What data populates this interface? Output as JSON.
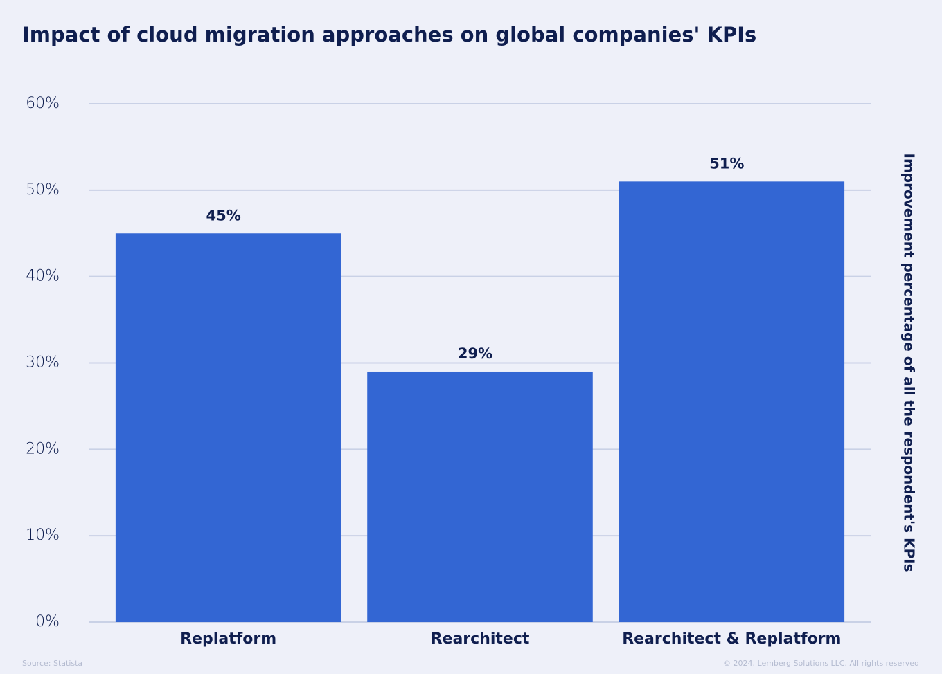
{
  "chart_data": {
    "type": "bar",
    "title": "Impact of cloud migration approaches on global companies' KPIs",
    "y_axis_label": "Improvement percentage of all the respondent's KPIs",
    "categories": [
      "Replatform",
      "Rearchitect",
      "Rearchitect & Replatform"
    ],
    "values": [
      45,
      29,
      51
    ],
    "value_labels": [
      "45%",
      "29%",
      "51%"
    ],
    "color": "#3366d3",
    "ylim": [
      0,
      60
    ],
    "yticks": [
      {
        "value": 0,
        "label": "0%"
      },
      {
        "value": 10,
        "label": "10%"
      },
      {
        "value": 20,
        "label": "20%"
      },
      {
        "value": 30,
        "label": "30%"
      },
      {
        "value": 40,
        "label": "40%"
      },
      {
        "value": 50,
        "label": "50%"
      },
      {
        "value": 60,
        "label": "60%"
      }
    ],
    "grid": true,
    "source": "Source: Statista",
    "copyright": "© 2024, Lemberg Solutions LLC. All rights reserved"
  }
}
